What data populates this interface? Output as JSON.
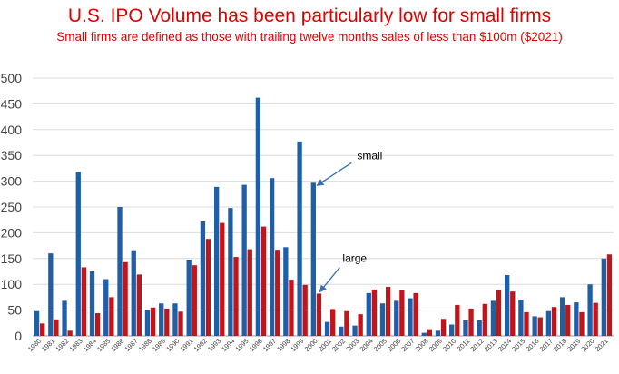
{
  "title": "U.S. IPO Volume has been particularly low for small firms",
  "subtitle": "Small firms are defined as those with trailing twelve months sales of less than $100m ($2021)",
  "chart_data": {
    "type": "bar",
    "categories": [
      "1980",
      "1981",
      "1982",
      "1983",
      "1984",
      "1985",
      "1986",
      "1987",
      "1988",
      "1989",
      "1990",
      "1991",
      "1992",
      "1993",
      "1994",
      "1995",
      "1996",
      "1997",
      "1998",
      "1999",
      "2000",
      "2001",
      "2002",
      "2003",
      "2004",
      "2005",
      "2006",
      "2007",
      "2008",
      "2009",
      "2010",
      "2011",
      "2012",
      "2013",
      "2014",
      "2015",
      "2016",
      "2017",
      "2018",
      "2019",
      "2020",
      "2021"
    ],
    "series": [
      {
        "name": "small",
        "color": "#1f5fa8",
        "values": [
          48,
          160,
          68,
          318,
          125,
          110,
          250,
          166,
          50,
          63,
          63,
          148,
          222,
          289,
          248,
          293,
          462,
          306,
          172,
          377,
          297,
          27,
          18,
          20,
          83,
          63,
          68,
          73,
          6,
          10,
          22,
          30,
          30,
          68,
          118,
          70,
          38,
          48,
          75,
          65,
          100,
          150
        ]
      },
      {
        "name": "large",
        "color": "#c0151b",
        "values": [
          24,
          32,
          10,
          133,
          44,
          75,
          143,
          119,
          55,
          53,
          47,
          137,
          188,
          219,
          153,
          168,
          212,
          167,
          109,
          99,
          82,
          52,
          48,
          42,
          90,
          95,
          88,
          83,
          13,
          33,
          60,
          53,
          62,
          89,
          86,
          46,
          36,
          56,
          60,
          46,
          64,
          158
        ]
      }
    ],
    "ylim": [
      0,
      500
    ],
    "yticks": [
      0,
      50,
      100,
      150,
      200,
      250,
      300,
      350,
      400,
      450,
      500
    ],
    "grid": true,
    "annotations": [
      {
        "text": "small",
        "series": "small",
        "category": "2000"
      },
      {
        "text": "large",
        "series": "large",
        "category": "2000"
      }
    ]
  }
}
